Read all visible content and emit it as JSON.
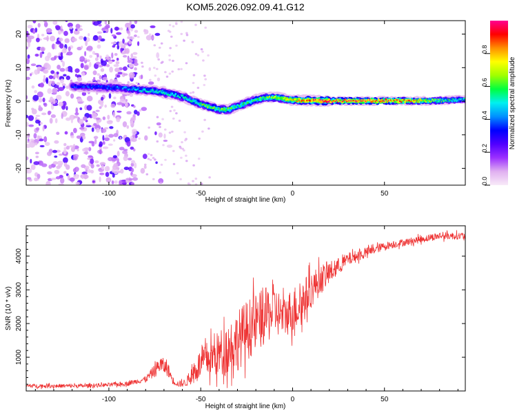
{
  "figure": {
    "title": "KOM5.2026.092.09.41.G12"
  },
  "chart_data": [
    {
      "type": "heatmap",
      "xlabel": "Height of straight line (km)",
      "ylabel": "Frequency (Hz)",
      "xlim": [
        -145,
        94
      ],
      "ylim": [
        -25,
        24
      ],
      "xticks": [
        -100,
        -50,
        0,
        50
      ],
      "yticks": [
        -20,
        -10,
        0,
        10,
        20
      ],
      "colorbar": {
        "label": "Normalized spectral amplitude",
        "range": [
          0,
          1
        ],
        "ticks": [
          0.0,
          0.2,
          0.4,
          0.6,
          0.8
        ],
        "tick_labels": [
          "0.0",
          "0.2",
          "0.4",
          "0.6",
          "0.8"
        ],
        "colormap": "rainbow",
        "stops": [
          "#f8eaf8",
          "#e0b0f0",
          "#9b30ff",
          "#5000ff",
          "#0000ff",
          "#0090ff",
          "#00f0f0",
          "#00ff40",
          "#a0ff00",
          "#ffff00",
          "#ff9000",
          "#ff0000",
          "#ff0090"
        ]
      },
      "ridge": {
        "height_km": [
          -120,
          -105,
          -95,
          -85,
          -75,
          -65,
          -58,
          -52,
          -46,
          -40,
          -35,
          -30,
          -25,
          -20,
          -15,
          -10,
          -5,
          0,
          10,
          20,
          30,
          40,
          50,
          60,
          70,
          80,
          94
        ],
        "frequency_hz": [
          4.5,
          4.2,
          4.0,
          3.5,
          3.0,
          2.0,
          1.0,
          -0.5,
          -1.5,
          -2.5,
          -2.5,
          -1.5,
          -0.5,
          0.5,
          1.0,
          1.2,
          0.8,
          0.3,
          0.2,
          0.1,
          0.1,
          0.1,
          0.1,
          0.1,
          0.1,
          0.2,
          0.5
        ],
        "amplitude": [
          0.35,
          0.35,
          0.4,
          0.45,
          0.5,
          0.5,
          0.5,
          0.55,
          0.6,
          0.6,
          0.6,
          0.55,
          0.55,
          0.55,
          0.6,
          0.65,
          0.7,
          0.75,
          0.85,
          0.9,
          0.9,
          0.9,
          0.9,
          0.85,
          0.75,
          0.6,
          0.5
        ]
      }
    },
    {
      "type": "line",
      "xlabel": "Height of straight line (km)",
      "ylabel": "SNR (10 * v/v)",
      "xlim": [
        -145,
        94
      ],
      "ylim": [
        0,
        4900
      ],
      "xticks": [
        -100,
        -50,
        0,
        50
      ],
      "yticks": [
        1000,
        2000,
        3000,
        4000
      ],
      "series": [
        {
          "color": "#ee3333",
          "x": [
            -145,
            -130,
            -115,
            -100,
            -90,
            -80,
            -75,
            -72,
            -68,
            -65,
            -62,
            -58,
            -55,
            -52,
            -48,
            -44,
            -40,
            -35,
            -30,
            -25,
            -20,
            -15,
            -10,
            -5,
            0,
            5,
            10,
            15,
            20,
            25,
            30,
            40,
            50,
            60,
            70,
            80,
            94
          ],
          "y": [
            150,
            150,
            150,
            180,
            220,
            350,
            600,
            800,
            650,
            300,
            200,
            250,
            450,
            700,
            900,
            1000,
            1100,
            1300,
            1500,
            1800,
            2000,
            2200,
            2400,
            2200,
            2400,
            2600,
            3000,
            3300,
            3500,
            3700,
            3900,
            4100,
            4300,
            4400,
            4500,
            4600,
            4600
          ],
          "noise": [
            60,
            60,
            60,
            60,
            70,
            90,
            200,
            250,
            220,
            120,
            90,
            120,
            250,
            400,
            500,
            600,
            700,
            800,
            900,
            900,
            900,
            850,
            800,
            600,
            700,
            700,
            550,
            450,
            350,
            250,
            200,
            150,
            120,
            110,
            110,
            110,
            110
          ]
        }
      ]
    }
  ]
}
